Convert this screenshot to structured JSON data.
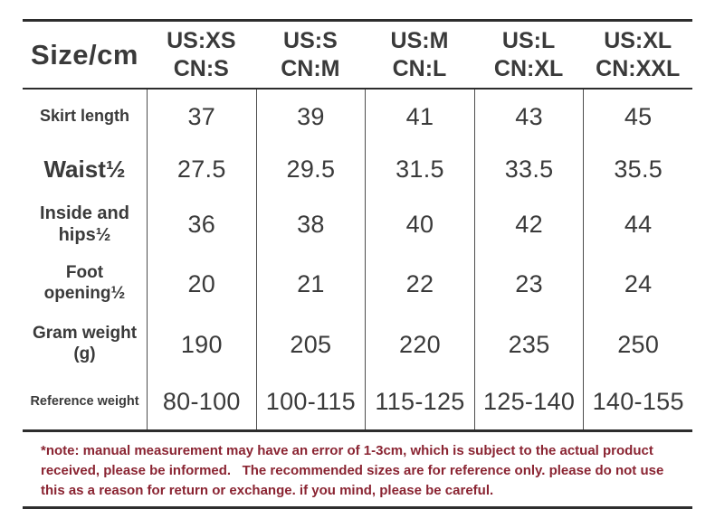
{
  "table": {
    "corner_label": "Size/cm",
    "columns": [
      {
        "us": "US:XS",
        "cn": "CN:S"
      },
      {
        "us": "US:S",
        "cn": "CN:M"
      },
      {
        "us": "US:M",
        "cn": "CN:L"
      },
      {
        "us": "US:L",
        "cn": "CN:XL"
      },
      {
        "us": "US:XL",
        "cn": "CN:XXL"
      }
    ],
    "rows": [
      {
        "label": "Skirt length",
        "values": [
          "37",
          "39",
          "41",
          "43",
          "45"
        ]
      },
      {
        "label": "Waist½",
        "values": [
          "27.5",
          "29.5",
          "31.5",
          "33.5",
          "35.5"
        ]
      },
      {
        "label": "Inside and hips½",
        "values": [
          "36",
          "38",
          "40",
          "42",
          "44"
        ]
      },
      {
        "label": "Foot opening½",
        "values": [
          "20",
          "21",
          "22",
          "23",
          "24"
        ]
      },
      {
        "label": "Gram weight (g)",
        "values": [
          "190",
          "205",
          "220",
          "235",
          "250"
        ]
      },
      {
        "label": "Reference weight",
        "values": [
          "80-100",
          "100-115",
          "115-125",
          "125-140",
          "140-155"
        ]
      }
    ]
  },
  "note": {
    "text": "*note: manual measurement may have an error of 1-3cm, which is subject to the actual product received, please be informed.   The recommended sizes are for reference only. please do not use this as a reason for return or exchange. if you mind, please be careful."
  },
  "colors": {
    "text": "#3a3a3a",
    "rule": "#2d2d2d",
    "column_divider": "#4d4d4d",
    "note_text": "#8a2432",
    "background": "#ffffff"
  }
}
